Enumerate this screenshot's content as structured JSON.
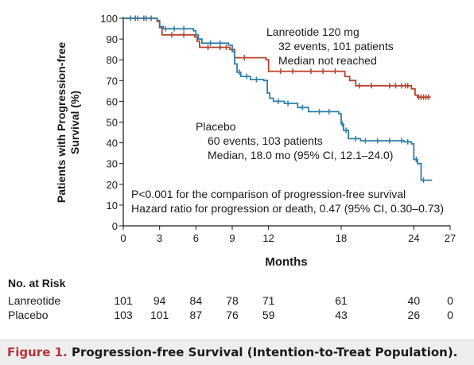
{
  "chart_data": {
    "type": "line",
    "subtype": "kaplan-meier",
    "xlabel": "Months",
    "ylabel_lines": [
      "Patients with Progression-free",
      "Survival (%)"
    ],
    "xlim": [
      0,
      27
    ],
    "ylim": [
      0,
      100
    ],
    "xticks": [
      0,
      3,
      6,
      9,
      12,
      18,
      24,
      27
    ],
    "yticks": [
      0,
      10,
      20,
      30,
      40,
      50,
      60,
      70,
      80,
      90,
      100
    ],
    "grid": false,
    "colors": {
      "lanreotide": "#b5432e",
      "placebo": "#2e7fa8"
    },
    "series": [
      {
        "name": "Lanreotide 120 mg",
        "color": "#b5432e",
        "annotation": [
          "Lanreotide 120 mg",
          "32 events, 101 patients",
          "Median not reached"
        ],
        "steps": [
          [
            0,
            100
          ],
          [
            2.8,
            98.5
          ],
          [
            3.0,
            95.5
          ],
          [
            3.2,
            92
          ],
          [
            5.9,
            91
          ],
          [
            6.1,
            89
          ],
          [
            6.3,
            86
          ],
          [
            8.8,
            85
          ],
          [
            9.2,
            81
          ],
          [
            11.8,
            80
          ],
          [
            12.0,
            74.5
          ],
          [
            18.3,
            72
          ],
          [
            18.7,
            70
          ],
          [
            19.2,
            67.5
          ],
          [
            23.8,
            66
          ],
          [
            24.1,
            63
          ],
          [
            24.3,
            62
          ],
          [
            25.4,
            62
          ]
        ],
        "censor_x": [
          1.0,
          1.7,
          2.3,
          4.0,
          5.0,
          7.0,
          8.0,
          8.5,
          10.0,
          13.0,
          14.0,
          15.5,
          16.5,
          17.5,
          19.5,
          20.5,
          22.0,
          22.5,
          23.0,
          23.3,
          23.5,
          24.4,
          24.6,
          24.8,
          25.0,
          25.2
        ]
      },
      {
        "name": "Placebo",
        "color": "#2e7fa8",
        "annotation": [
          "Placebo",
          "60 events, 103 patients",
          "Median, 18.0 mo (95% CI, 12.1–24.0)"
        ],
        "steps": [
          [
            0,
            100
          ],
          [
            2.8,
            99
          ],
          [
            3.0,
            96
          ],
          [
            3.3,
            95
          ],
          [
            5.8,
            94
          ],
          [
            6.0,
            92
          ],
          [
            6.2,
            90
          ],
          [
            6.5,
            88
          ],
          [
            8.7,
            87
          ],
          [
            9.0,
            84
          ],
          [
            9.2,
            78
          ],
          [
            9.4,
            74
          ],
          [
            9.7,
            72
          ],
          [
            10.5,
            70.5
          ],
          [
            11.6,
            70
          ],
          [
            11.9,
            64
          ],
          [
            12.1,
            61.5
          ],
          [
            12.4,
            60
          ],
          [
            13.3,
            59
          ],
          [
            14.4,
            57
          ],
          [
            15.3,
            55
          ],
          [
            17.8,
            54
          ],
          [
            18.0,
            49
          ],
          [
            18.2,
            46
          ],
          [
            18.6,
            42
          ],
          [
            19.6,
            41
          ],
          [
            23.2,
            40.5
          ],
          [
            23.8,
            39.5
          ],
          [
            24.0,
            32
          ],
          [
            24.3,
            30
          ],
          [
            24.6,
            22
          ],
          [
            25.5,
            22
          ]
        ],
        "censor_x": [
          0.6,
          1.2,
          1.9,
          3.5,
          4.2,
          5.0,
          7.2,
          8.0,
          9.6,
          10.2,
          11.0,
          12.8,
          13.6,
          14.8,
          16.2,
          17.0,
          18.1,
          18.4,
          19.2,
          20.0,
          21.0,
          22.0,
          23.0,
          23.5,
          24.2,
          24.8
        ]
      }
    ],
    "annotations": [
      "P<0.001 for the comparison of progression-free survival",
      "Hazard ratio for progression or death, 0.47 (95% CI, 0.30–0.73)"
    ]
  },
  "risk_table": {
    "title": "No. at Risk",
    "months": [
      0,
      3,
      6,
      9,
      12,
      18,
      24,
      27
    ],
    "rows": [
      {
        "label": "Lanreotide",
        "values": [
          "101",
          "94",
          "84",
          "78",
          "71",
          "61",
          "40",
          "0"
        ]
      },
      {
        "label": "Placebo",
        "values": [
          "103",
          "101",
          "87",
          "76",
          "59",
          "43",
          "26",
          "0"
        ]
      }
    ]
  },
  "caption": {
    "prefix": "Figure 1.",
    "text": " Progression-free Survival (Intention-to-Treat Population)."
  }
}
